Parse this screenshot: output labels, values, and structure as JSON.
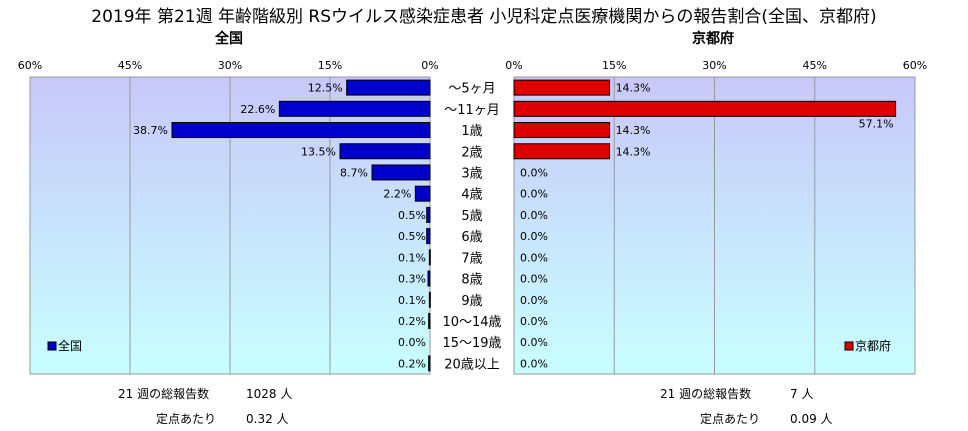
{
  "title": "2019年 第21週 年齢階級別 RSウイルス感染症患者 小児科定点医療機関からの報告割合(全国、京都府)",
  "chart_data": [
    {
      "type": "bar",
      "orientation": "horizontal",
      "title": "全国",
      "categories": [
        "～5ヶ月",
        "～11ヶ月",
        "1歳",
        "2歳",
        "3歳",
        "4歳",
        "5歳",
        "6歳",
        "7歳",
        "8歳",
        "9歳",
        "10～14歳",
        "15～19歳",
        "20歳以上"
      ],
      "series": [
        {
          "name": "全国",
          "values": [
            12.5,
            22.6,
            38.7,
            13.5,
            8.7,
            2.2,
            0.5,
            0.5,
            0.1,
            0.3,
            0.1,
            0.2,
            0.0,
            0.2
          ]
        }
      ],
      "value_labels": [
        "12.5%",
        "22.6%",
        "38.7%",
        "13.5%",
        "8.7%",
        "2.2%",
        "0.5%",
        "0.5%",
        "0.1%",
        "0.3%",
        "0.1%",
        "0.2%",
        "0.0%",
        "0.2%"
      ],
      "xlim": [
        0,
        60
      ],
      "axis_reversed": true,
      "tick_labels": [
        "60%",
        "45%",
        "30%",
        "15%",
        "0%"
      ],
      "color": "#0000cc",
      "legend_label": "全国",
      "legend_position": "bottom-left",
      "grid": true
    },
    {
      "type": "bar",
      "orientation": "horizontal",
      "title": "京都府",
      "categories": [
        "～5ヶ月",
        "～11ヶ月",
        "1歳",
        "2歳",
        "3歳",
        "4歳",
        "5歳",
        "6歳",
        "7歳",
        "8歳",
        "9歳",
        "10～14歳",
        "15～19歳",
        "20歳以上"
      ],
      "series": [
        {
          "name": "京都府",
          "values": [
            14.3,
            57.1,
            14.3,
            14.3,
            0.0,
            0.0,
            0.0,
            0.0,
            0.0,
            0.0,
            0.0,
            0.0,
            0.0,
            0.0
          ]
        }
      ],
      "value_labels": [
        "14.3%",
        "57.1%",
        "14.3%",
        "14.3%",
        "0.0%",
        "0.0%",
        "0.0%",
        "0.0%",
        "0.0%",
        "0.0%",
        "0.0%",
        "0.0%",
        "0.0%",
        "0.0%"
      ],
      "xlim": [
        0,
        60
      ],
      "axis_reversed": false,
      "tick_labels": [
        "0%",
        "15%",
        "30%",
        "45%",
        "60%"
      ],
      "color": "#dd0000",
      "legend_label": "京都府",
      "legend_position": "bottom-right",
      "grid": true
    }
  ],
  "stats": {
    "national": {
      "total_label": "21 週の総報告数",
      "total_value": "1028 人",
      "per_label": "定点あたり",
      "per_value": "0.32 人"
    },
    "kyoto": {
      "total_label": "21 週の総報告数",
      "total_value": "7 人",
      "per_label": "定点あたり",
      "per_value": "0.09 人"
    }
  }
}
